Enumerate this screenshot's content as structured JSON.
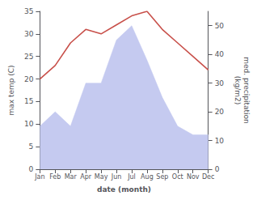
{
  "chart_data": {
    "type": "line",
    "xlabel": "date (month)",
    "ylabel": "max temp (C)",
    "y2label": "med. precipitation\n(kg/m2)",
    "categories": [
      "Jan",
      "Feb",
      "Mar",
      "Apr",
      "May",
      "Jun",
      "Jul",
      "Aug",
      "Sep",
      "Oct",
      "Nov",
      "Dec"
    ],
    "series": [
      {
        "type": "area",
        "axis": "y2",
        "color": "#c5caf0",
        "values": [
          15,
          20,
          15,
          30,
          30,
          45,
          50,
          38,
          25,
          15,
          12,
          12
        ]
      },
      {
        "type": "line",
        "color": "#c8504a",
        "values": [
          20,
          23,
          28,
          31,
          30,
          32,
          34,
          35,
          31,
          28,
          25,
          22
        ]
      }
    ],
    "ylim": [
      0,
      35
    ],
    "yticks": [
      0,
      5,
      10,
      15,
      20,
      25,
      30,
      35
    ],
    "y2lim": [
      0,
      55
    ],
    "y2ticks": [
      0,
      10,
      20,
      30,
      40,
      50
    ],
    "grid": false
  }
}
